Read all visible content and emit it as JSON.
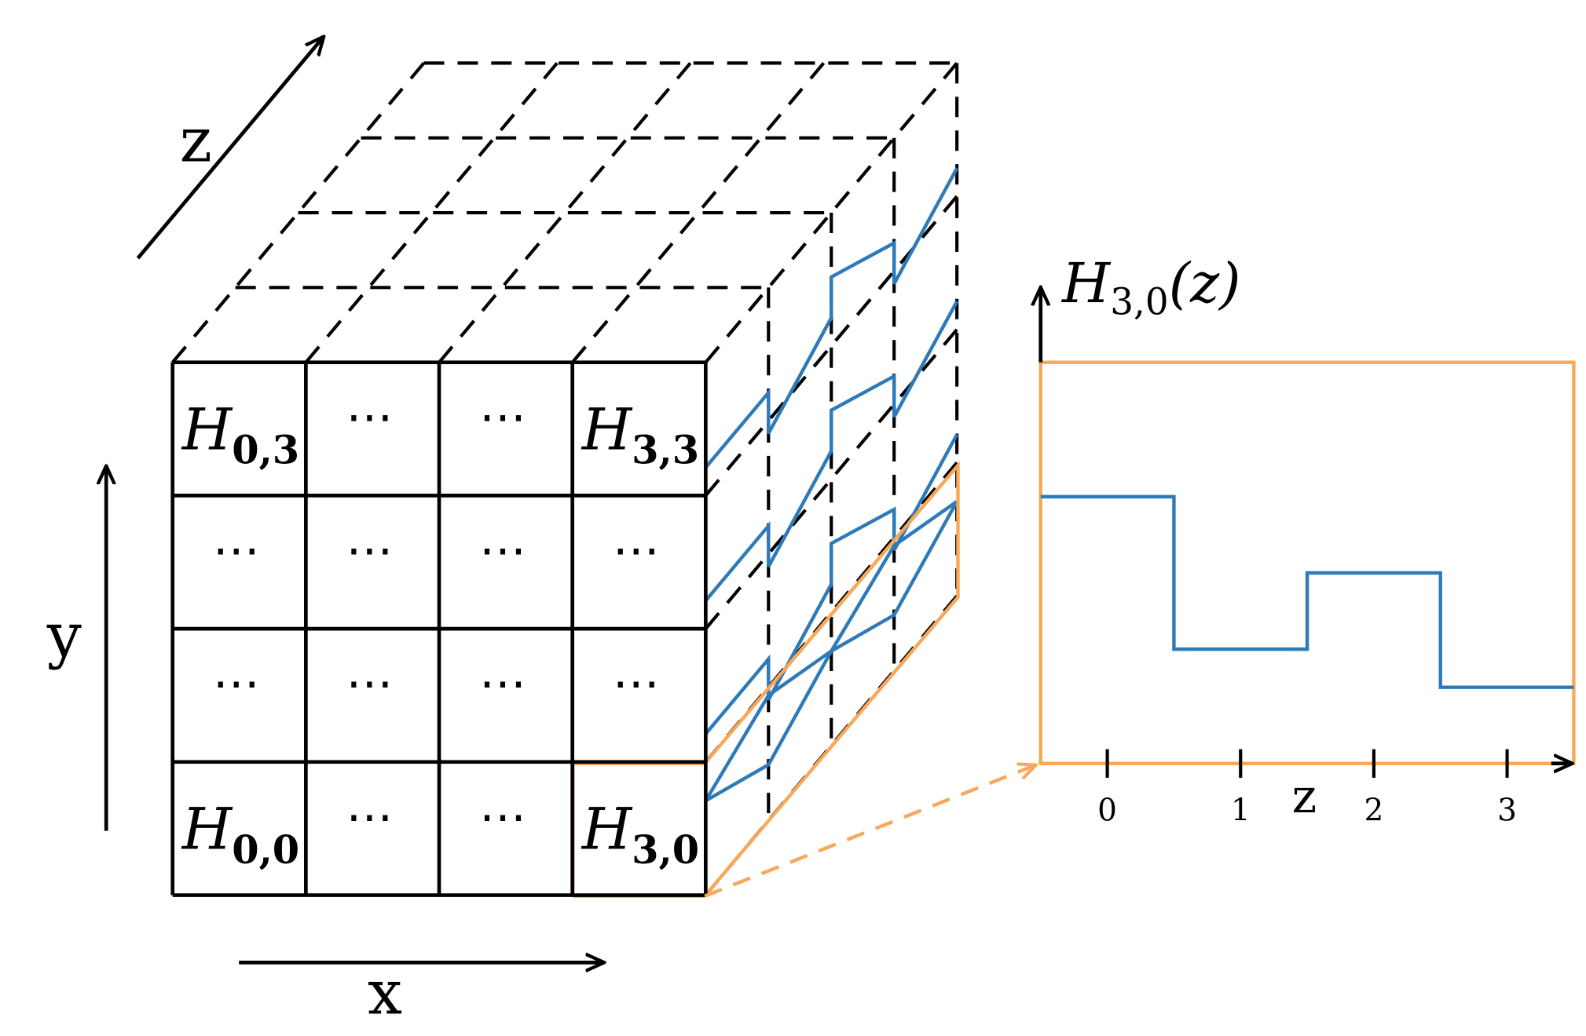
{
  "cube": {
    "front_labels": [
      [
        "H_{0,3}",
        "⋯",
        "⋯",
        "H_{3,3}"
      ],
      [
        "⋯",
        "⋯",
        "⋯",
        "⋯"
      ],
      [
        "⋯",
        "⋯",
        "⋯",
        "⋯"
      ],
      [
        "H_{0,0}",
        "⋯",
        "⋯",
        "H_{3,0}"
      ]
    ],
    "axes": {
      "x": "x",
      "y": "y",
      "z": "z"
    }
  },
  "histogram": {
    "title": "H_{3,0}(z)",
    "x_label": "z",
    "ticks": [
      "0",
      "1",
      "2",
      "3"
    ],
    "levels": [
      0.7,
      0.3,
      0.5,
      0.2
    ]
  },
  "colors": {
    "outline": "#000000",
    "highlight": "#f7a85a",
    "histogram": "#2e7ab8"
  },
  "chart_data": {
    "type": "line",
    "title": "H_{3,0}(z)",
    "xlabel": "z",
    "ylabel": "",
    "categories": [
      "0",
      "1",
      "2",
      "3"
    ],
    "series": [
      {
        "values": [
          0.7,
          0.3,
          0.5,
          0.2
        ]
      }
    ],
    "grid": false
  }
}
